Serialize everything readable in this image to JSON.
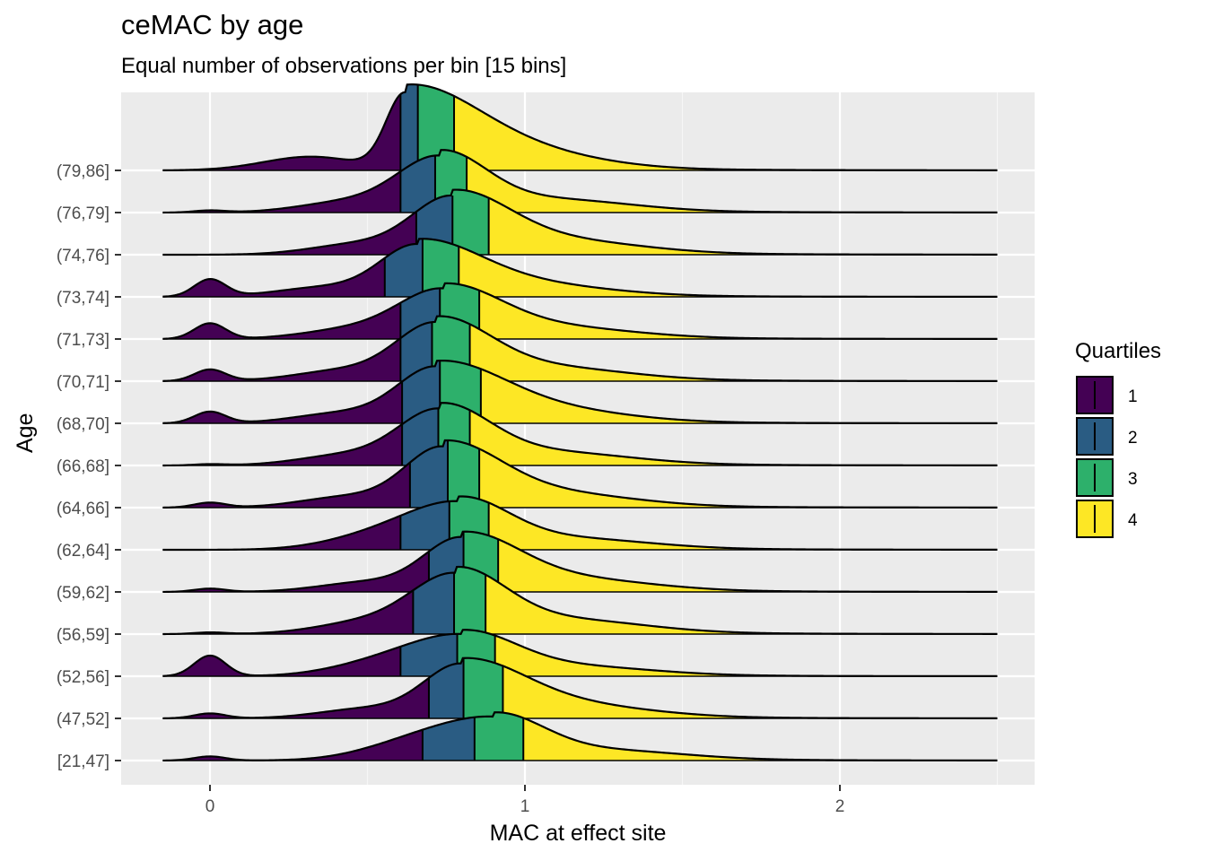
{
  "title": "ceMAC by age",
  "subtitle": "Equal number of observations per bin [15 bins]",
  "legend": {
    "title": "Quartiles",
    "items": [
      {
        "label": "1",
        "color": "#440154"
      },
      {
        "label": "2",
        "color": "#2A5C83"
      },
      {
        "label": "3",
        "color": "#2DB06B"
      },
      {
        "label": "4",
        "color": "#FDE725"
      }
    ]
  },
  "chart_data": {
    "type": "ridgeline",
    "title": "ceMAC by age",
    "subtitle": "Equal number of observations per bin [15 bins]",
    "xlabel": "MAC at effect site",
    "ylabel": "Age",
    "xlim": [
      -0.3,
      2.6
    ],
    "x_ticks": [
      0,
      1,
      2
    ],
    "x_tick_labels": [
      "0",
      "1",
      "2"
    ],
    "x_range_drawn": [
      -0.15,
      2.5
    ],
    "grid": true,
    "legend_position": "right",
    "categories": [
      "[21,47]",
      "(47,52]",
      "(52,56]",
      "(56,59]",
      "(59,62]",
      "(62,64]",
      "(64,66]",
      "(66,68]",
      "(68,70]",
      "(70,71]",
      "(71,73]",
      "(73,74]",
      "(74,76]",
      "(76,79]",
      "(79,86]"
    ],
    "series": [
      {
        "age": "[21,47]",
        "quartiles": [
          0.675,
          0.84,
          0.995
        ],
        "peak": 0.9,
        "peak_height": 1.04,
        "secondary_mode": 0.0,
        "secondary_height": 0.1
      },
      {
        "age": "(47,52]",
        "quartiles": [
          0.695,
          0.805,
          0.93
        ],
        "peak": 0.8,
        "peak_height": 1.3,
        "secondary_mode": 0.0,
        "secondary_height": 0.12
      },
      {
        "age": "(52,56]",
        "quartiles": [
          0.605,
          0.785,
          0.905
        ],
        "peak": 0.8,
        "peak_height": 1.0,
        "secondary_mode": 0.0,
        "secondary_height": 0.5
      },
      {
        "age": "(56,59]",
        "quartiles": [
          0.645,
          0.775,
          0.875
        ],
        "peak": 0.78,
        "peak_height": 1.45,
        "secondary_mode": 0.0,
        "secondary_height": 0.04
      },
      {
        "age": "(59,62]",
        "quartiles": [
          0.695,
          0.805,
          0.915
        ],
        "peak": 0.8,
        "peak_height": 1.3,
        "secondary_mode": 0.0,
        "secondary_height": 0.08
      },
      {
        "age": "(62,64]",
        "quartiles": [
          0.605,
          0.76,
          0.885
        ],
        "peak": 0.79,
        "peak_height": 1.15,
        "secondary_mode": null,
        "secondary_height": 0
      },
      {
        "age": "(64,66]",
        "quartiles": [
          0.635,
          0.755,
          0.855
        ],
        "peak": 0.74,
        "peak_height": 1.45,
        "secondary_mode": 0.0,
        "secondary_height": 0.12
      },
      {
        "age": "(66,68]",
        "quartiles": [
          0.61,
          0.725,
          0.825
        ],
        "peak": 0.73,
        "peak_height": 1.35,
        "secondary_mode": 0.0,
        "secondary_height": 0.03
      },
      {
        "age": "(68,70]",
        "quartiles": [
          0.61,
          0.73,
          0.86
        ],
        "peak": 0.72,
        "peak_height": 1.35,
        "secondary_mode": 0.0,
        "secondary_height": 0.28
      },
      {
        "age": "(70,71]",
        "quartiles": [
          0.605,
          0.705,
          0.825
        ],
        "peak": 0.72,
        "peak_height": 1.4,
        "secondary_mode": 0.0,
        "secondary_height": 0.28
      },
      {
        "age": "(71,73]",
        "quartiles": [
          0.605,
          0.73,
          0.855
        ],
        "peak": 0.74,
        "peak_height": 1.2,
        "secondary_mode": 0.0,
        "secondary_height": 0.38
      },
      {
        "age": "(73,74]",
        "quartiles": [
          0.555,
          0.675,
          0.79
        ],
        "peak": 0.66,
        "peak_height": 1.25,
        "secondary_mode": 0.0,
        "secondary_height": 0.42
      },
      {
        "age": "(74,76]",
        "quartiles": [
          0.655,
          0.77,
          0.885
        ],
        "peak": 0.77,
        "peak_height": 1.4,
        "secondary_mode": null,
        "secondary_height": 0
      },
      {
        "age": "(76,79]",
        "quartiles": [
          0.605,
          0.715,
          0.815
        ],
        "peak": 0.73,
        "peak_height": 1.35,
        "secondary_mode": 0.0,
        "secondary_height": 0.05
      },
      {
        "age": "(79,86]",
        "quartiles": [
          0.605,
          0.66,
          0.775
        ],
        "peak": 0.62,
        "peak_height": 1.85,
        "secondary_mode": null,
        "secondary_height": 0
      }
    ]
  }
}
